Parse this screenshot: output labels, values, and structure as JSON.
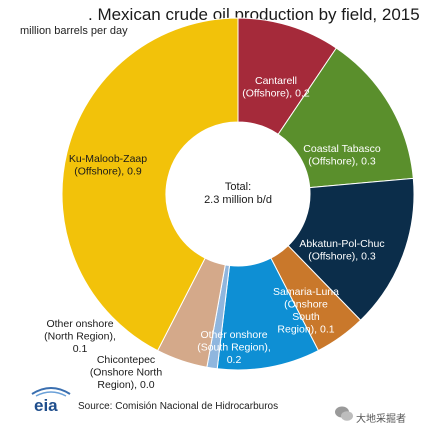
{
  "title": ". Mexican crude oil production by field, 2015",
  "subtitle": "million barrels per day",
  "source": "Source: Comisión Nacional de Hidrocarburos",
  "logo_text": "eia",
  "watermark": "大地采掘者",
  "chart_data": {
    "type": "pie",
    "center_text": [
      "Total:",
      "2.3 million b/d"
    ],
    "unit": "million barrels per day",
    "slices": [
      {
        "label": [
          "Cantarell",
          "(Offshore), 0.2"
        ],
        "value": 0.2,
        "color": "#a52a3a",
        "label_color": "#ffffff"
      },
      {
        "label": [
          "Coastal Tabasco",
          "(Offshore), 0.3"
        ],
        "value": 0.3,
        "color": "#5a8f2c",
        "label_color": "#ffffff"
      },
      {
        "label": [
          "Abkatun-Pol-Chuc",
          "(Offshore), 0.3"
        ],
        "value": 0.3,
        "color": "#0b2d4a",
        "label_color": "#ffffff"
      },
      {
        "label": [
          "Samaria-Luna",
          "(Onshore",
          "South",
          "Region), 0.1"
        ],
        "value": 0.1,
        "color": "#c9782b",
        "label_color": "#ffffff"
      },
      {
        "label": [
          "Other onshore",
          "(South Region),",
          "0.2"
        ],
        "value": 0.2,
        "color": "#0e8fd4",
        "label_color": "#ffffff"
      },
      {
        "label": [
          "Chicontepec",
          "(Onshore North",
          "Region), 0.0"
        ],
        "value": 0.02,
        "color": "#8fb6de",
        "label_color": "#1a1a1a"
      },
      {
        "label": [
          "Other onshore",
          "(North Region),",
          "0.1"
        ],
        "value": 0.1,
        "color": "#d4a98a",
        "label_color": "#1a1a1a"
      },
      {
        "label": [
          "Ku-Maloob-Zaap",
          "(Offshore), 0.9"
        ],
        "value": 0.9,
        "color": "#f2c20a",
        "label_color": "#1a1a1a"
      }
    ]
  }
}
